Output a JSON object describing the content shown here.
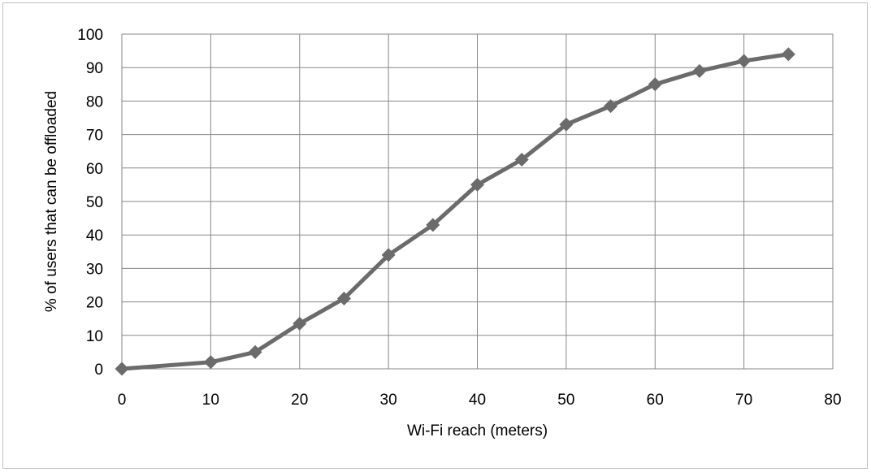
{
  "chart_data": {
    "type": "line",
    "xlabel": "Wi-Fi reach (meters)",
    "ylabel": "% of users that can be offloaded",
    "xlim": [
      0,
      80
    ],
    "ylim": [
      0,
      100
    ],
    "x_ticks": [
      0,
      10,
      20,
      30,
      40,
      50,
      60,
      70,
      80
    ],
    "y_ticks": [
      0,
      10,
      20,
      30,
      40,
      50,
      60,
      70,
      80,
      90,
      100
    ],
    "grid": true,
    "legend": "none",
    "series": [
      {
        "color": "#6b6b6b",
        "marker": "diamond",
        "x": [
          0,
          10,
          15,
          20,
          25,
          30,
          35,
          40,
          45,
          50,
          55,
          60,
          65,
          70,
          75
        ],
        "y": [
          0,
          2,
          5,
          13.5,
          21,
          34,
          43,
          55,
          62.5,
          73,
          78.5,
          85,
          89,
          92,
          94
        ]
      }
    ]
  }
}
